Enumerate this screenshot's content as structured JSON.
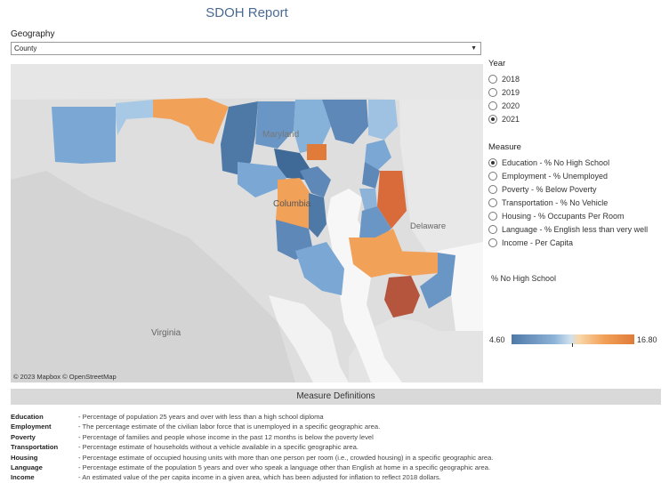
{
  "title": "SDOH Report",
  "geography": {
    "label": "Geography",
    "selected": "County"
  },
  "map": {
    "credit": "© 2023 Mapbox  © OpenStreetMap",
    "place_labels": {
      "maryland": "Maryland",
      "columbia": "Columbia",
      "delaware": "Delaware",
      "virginia": "Virginia"
    }
  },
  "year": {
    "label": "Year",
    "options": [
      {
        "label": "2018",
        "selected": false
      },
      {
        "label": "2019",
        "selected": false
      },
      {
        "label": "2020",
        "selected": false
      },
      {
        "label": "2021",
        "selected": true
      }
    ]
  },
  "measure": {
    "label": "Measure",
    "options": [
      {
        "label": "Education - % No High School",
        "selected": true
      },
      {
        "label": "Employment - % Unemployed",
        "selected": false
      },
      {
        "label": "Poverty - % Below Poverty",
        "selected": false
      },
      {
        "label": "Transportation - % No Vehicle",
        "selected": false
      },
      {
        "label": "Housing - % Occupants Per Room",
        "selected": false
      },
      {
        "label": "Language - % English less than very well",
        "selected": false
      },
      {
        "label": "Income - Per Capita",
        "selected": false
      }
    ]
  },
  "legend": {
    "title": "% No High School",
    "min": "4.60",
    "max": "16.80"
  },
  "definitions": {
    "header": "Measure Definitions",
    "items": [
      {
        "term": "Education",
        "desc": "- Percentage of population 25 years and over with less than a high school diploma"
      },
      {
        "term": "Employment",
        "desc": "- The percentage estimate of the civilian labor force that is unemployed in a specific geographic area."
      },
      {
        "term": "Poverty",
        "desc": "- Percentage of families and people whose income in the past 12 months is below the poverty level"
      },
      {
        "term": "Transportation",
        "desc": "- Percentage estimate of households without a vehicle available in a specific geographic area."
      },
      {
        "term": "Housing",
        "desc": "- Percentage estimate of occupied housing units with more than one person per room (i.e., crowded housing) in a specific geographic area."
      },
      {
        "term": "Language",
        "desc": "- Percentage estimate of the population 5 years and over who speak a language other than English at home in a specific geographic area."
      },
      {
        "term": "Income",
        "desc": "- An estimated value of the per capita income in a given area, which has been adjusted for inflation to reflect 2018 dollars."
      }
    ]
  }
}
